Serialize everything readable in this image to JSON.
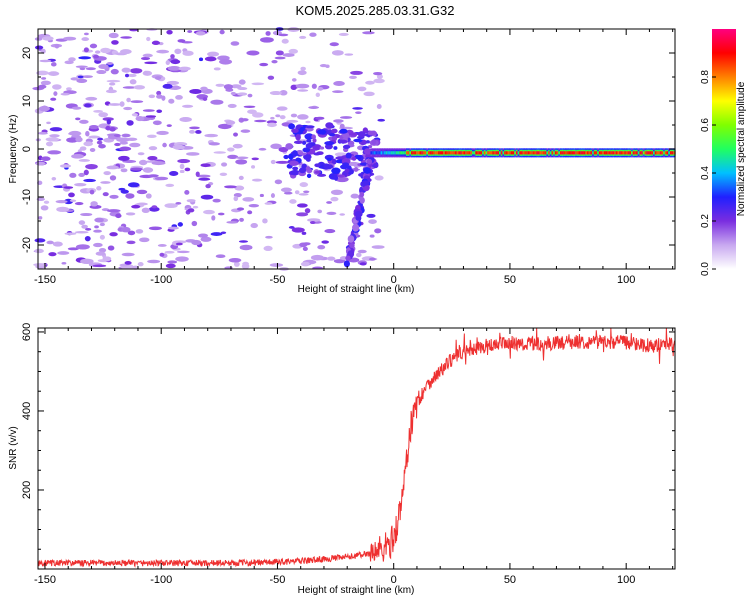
{
  "title": "KOM5.2025.285.03.31.G32",
  "chart_data": [
    {
      "type": "heatmap",
      "xlabel": "Height of straight line (km)",
      "ylabel": "Frequency (Hz)",
      "xlim": [
        -153,
        121
      ],
      "ylim": [
        -25,
        25
      ],
      "xticks": [
        -150,
        -100,
        -50,
        0,
        50,
        100
      ],
      "yticks": [
        -20,
        -10,
        0,
        10,
        20
      ],
      "colorbar": {
        "label": "Normalized spectral amplitude",
        "range": [
          0,
          1
        ],
        "ticks": [
          "0.0",
          "0.2",
          "0.4",
          "0.6",
          "0.8"
        ],
        "tick_values": [
          0.0,
          0.2,
          0.4,
          0.6,
          0.8
        ],
        "colors": [
          "#ffffff",
          "#c8a8f0",
          "#7a2de0",
          "#2020ff",
          "#00c0ff",
          "#20ff60",
          "#80ff00",
          "#ffff00",
          "#ff8000",
          "#ff0000",
          "#ff0080"
        ]
      },
      "features": {
        "tone_start_km": -10,
        "tone_end_km": 121,
        "tone_freq_hz": -0.8,
        "strong_from_km": 5,
        "descending_branch": {
          "from_km": -10,
          "to_km": -20,
          "freq_from_hz": -2,
          "freq_to_hz": -24
        }
      }
    },
    {
      "type": "line",
      "xlabel": "Height of straight line (km)",
      "ylabel": "SNR (v/v)",
      "xlim": [
        -153,
        121
      ],
      "ylim": [
        0,
        610
      ],
      "xticks": [
        -150,
        -100,
        -50,
        0,
        50,
        100
      ],
      "yticks": [
        200,
        400,
        600
      ],
      "series": [
        {
          "name": "SNR",
          "color": "#ee3030",
          "x": [
            -153,
            -130,
            -100,
            -80,
            -60,
            -50,
            -40,
            -30,
            -20,
            -10,
            -5,
            -2,
            0,
            3,
            5,
            7,
            10,
            15,
            20,
            25,
            30,
            40,
            50,
            60,
            70,
            80,
            90,
            100,
            110,
            121
          ],
          "y": [
            15,
            15,
            15,
            15,
            16,
            18,
            20,
            25,
            30,
            40,
            50,
            60,
            80,
            150,
            250,
            350,
            420,
            470,
            500,
            530,
            550,
            565,
            570,
            570,
            572,
            575,
            575,
            575,
            565,
            570
          ]
        }
      ]
    }
  ]
}
